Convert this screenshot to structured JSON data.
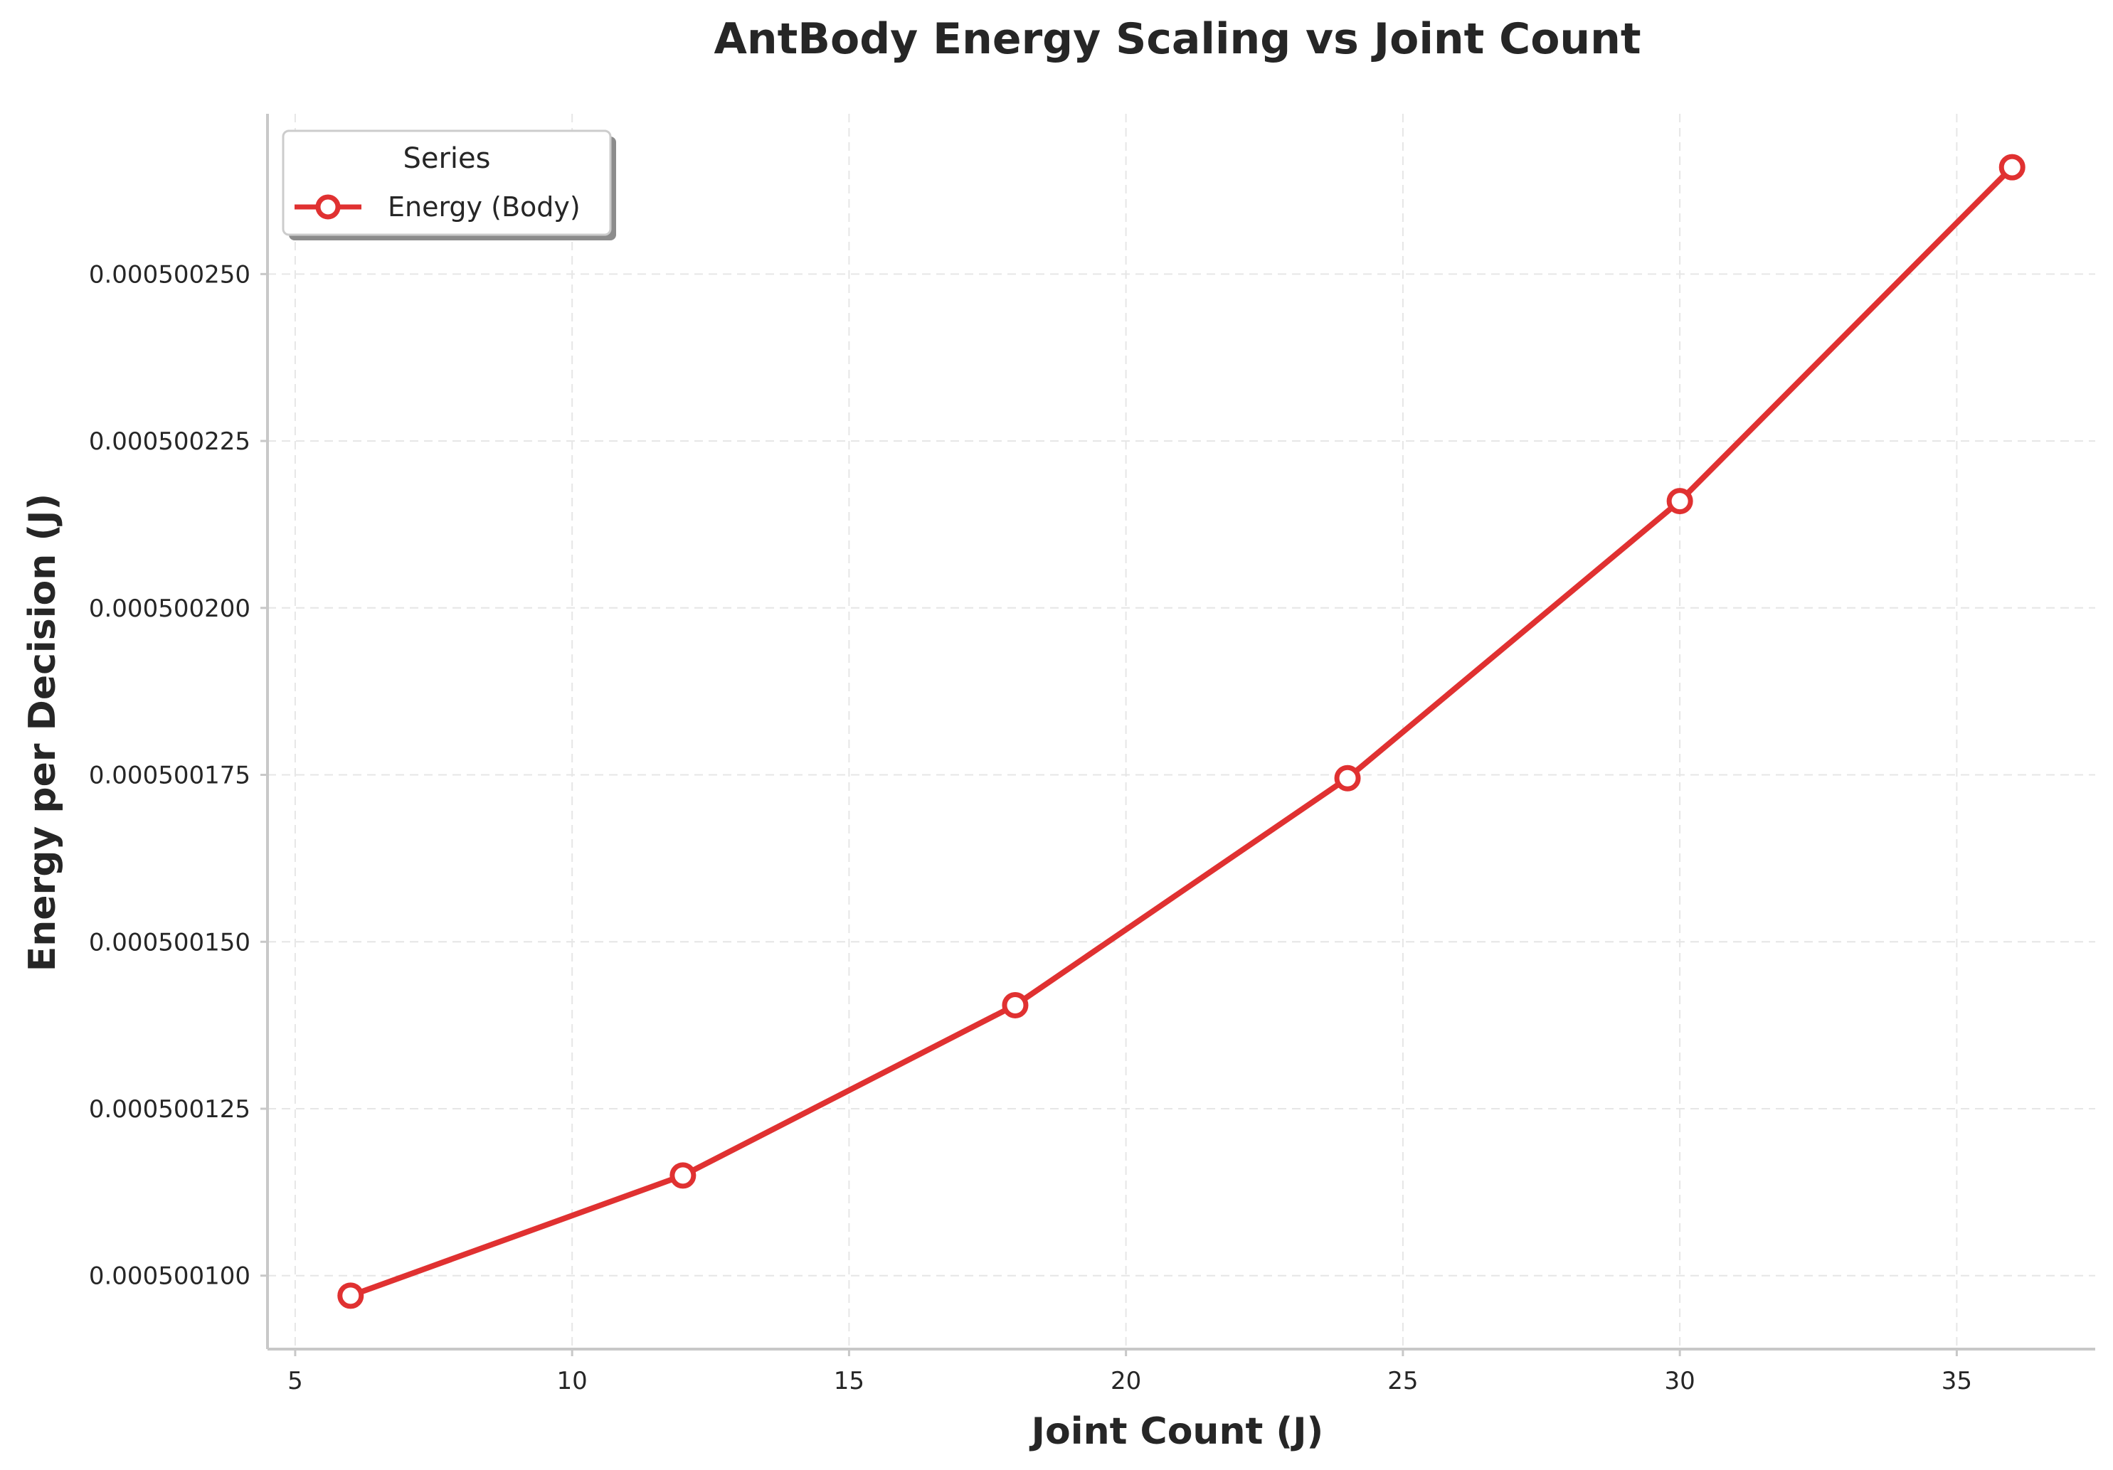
{
  "chart_data": {
    "type": "line",
    "title": "AntBody Energy Scaling vs Joint Count",
    "xlabel": "Joint Count (J)",
    "ylabel": "Energy per Decision (J)",
    "xlim": [
      4.5,
      37.5
    ],
    "ylim": [
      0.000500089,
      0.000500274
    ],
    "x_ticks": [
      5,
      10,
      15,
      20,
      25,
      30,
      35
    ],
    "x_tick_labels": [
      "5",
      "10",
      "15",
      "20",
      "25",
      "30",
      "35"
    ],
    "y_ticks": [
      0.0005001,
      0.000500125,
      0.00050015,
      0.000500175,
      0.0005002,
      0.000500225,
      0.00050025
    ],
    "y_tick_labels": [
      "0.000500100",
      "0.000500125",
      "0.000500150",
      "0.000500175",
      "0.000500200",
      "0.000500225",
      "0.000500250"
    ],
    "grid": true,
    "legend": {
      "title": "Series",
      "position": "top-left"
    },
    "series": [
      {
        "name": "Energy (Body)",
        "color": "#e03131",
        "marker": "open-circle",
        "x": [
          6,
          12,
          18,
          24,
          30,
          36
        ],
        "y": [
          0.000500097,
          0.000500115,
          0.0005001405,
          0.0005001745,
          0.000500216,
          0.000500266
        ]
      }
    ]
  }
}
